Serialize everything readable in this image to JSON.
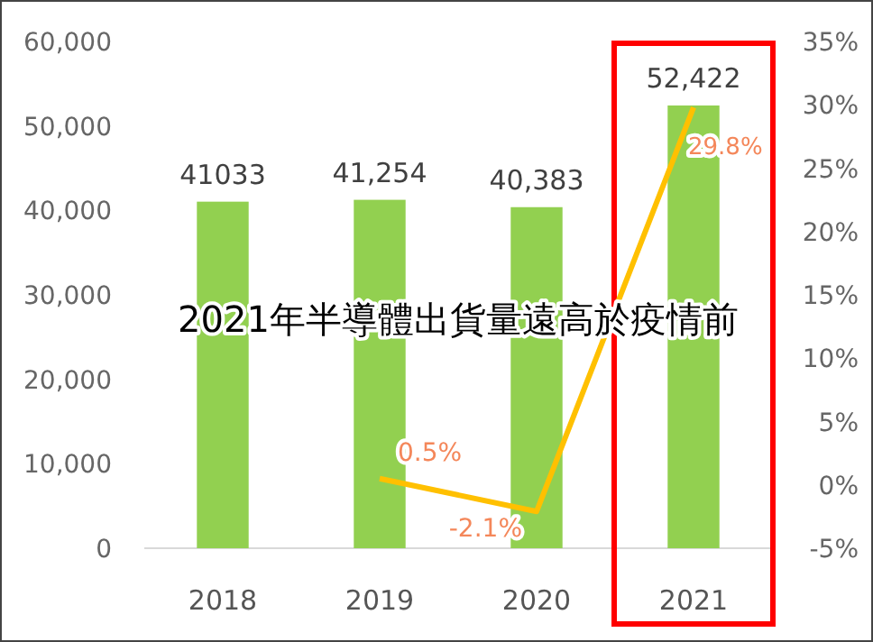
{
  "chart_data": {
    "type": "bar",
    "categories": [
      "2018",
      "2019",
      "2020",
      "2021"
    ],
    "series": [
      {
        "color": "#92d050",
        "values": [
          41033,
          41254,
          40383,
          52422
        ],
        "value_labels": [
          "41033",
          "41,254",
          "40,383",
          "52,422"
        ]
      },
      {
        "type": "line",
        "axis": "y2",
        "color": "#ffc000",
        "values": [
          null,
          0.5,
          -2.1,
          29.8
        ],
        "value_labels": [
          null,
          "0.5%",
          "-2.1%",
          "29.8%"
        ]
      }
    ],
    "ylim": [
      0,
      60000
    ],
    "yticks": [
      {
        "value": 0,
        "label": "0"
      },
      {
        "value": 10000,
        "label": "10,000"
      },
      {
        "value": 20000,
        "label": "20,000"
      },
      {
        "value": 30000,
        "label": "30,000"
      },
      {
        "value": 40000,
        "label": "40,000"
      },
      {
        "value": 50000,
        "label": "50,000"
      },
      {
        "value": 60000,
        "label": "60,000"
      }
    ],
    "y2lim": [
      -5,
      35
    ],
    "y2ticks": [
      {
        "value": -5,
        "label": "-5%"
      },
      {
        "value": 0,
        "label": "0%"
      },
      {
        "value": 5,
        "label": "5%"
      },
      {
        "value": 10,
        "label": "10%"
      },
      {
        "value": 15,
        "label": "15%"
      },
      {
        "value": 20,
        "label": "20%"
      },
      {
        "value": 25,
        "label": "25%"
      },
      {
        "value": 30,
        "label": "30%"
      },
      {
        "value": 35,
        "label": "35%"
      }
    ],
    "annotations": [
      "2021年半導體出貨量遠高於疫情前"
    ]
  }
}
